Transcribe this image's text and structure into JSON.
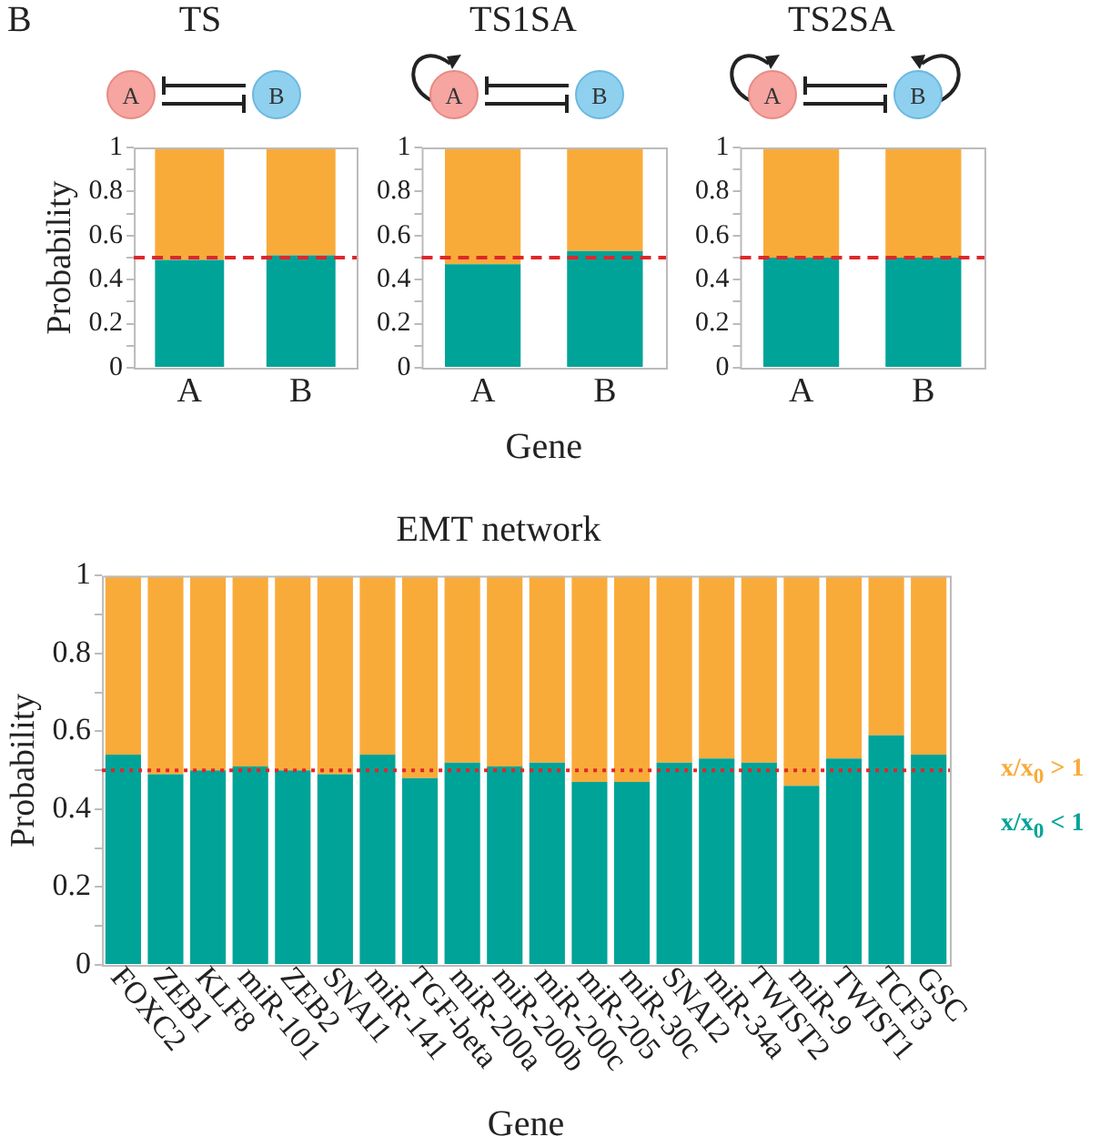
{
  "chart_data": [
    {
      "type": "bar",
      "title": "TS",
      "annotations": [
        "B"
      ],
      "ylabel": "Probability",
      "categories": [
        "A",
        "B"
      ],
      "stacked": true,
      "series": [
        {
          "color": "#00a398",
          "values": [
            0.49,
            0.51
          ]
        },
        {
          "color": "#f9ab3a",
          "values": [
            0.51,
            0.49
          ]
        }
      ],
      "ylim": [
        0,
        1
      ],
      "yticks": [
        0,
        {
          "value": 0.1,
          "label": null
        },
        0.2,
        {
          "value": 0.3,
          "label": null
        },
        0.4,
        {
          "value": 0.5,
          "label": null
        },
        0.6,
        {
          "value": 0.7,
          "label": null
        },
        0.8,
        {
          "value": 0.9,
          "label": null
        },
        1
      ],
      "ref_lines": [
        {
          "axis": "y",
          "value": 0.5,
          "color": "#e0262a",
          "line_style": "dashed"
        }
      ]
    },
    {
      "type": "bar",
      "title": "TS1SA",
      "xlabel": "Gene",
      "categories": [
        "A",
        "B"
      ],
      "stacked": true,
      "series": [
        {
          "color": "#00a398",
          "values": [
            0.47,
            0.53
          ]
        },
        {
          "color": "#f9ab3a",
          "values": [
            0.53,
            0.47
          ]
        }
      ],
      "ylim": [
        0,
        1
      ],
      "yticks": [
        0,
        {
          "value": 0.1,
          "label": null
        },
        0.2,
        {
          "value": 0.3,
          "label": null
        },
        0.4,
        {
          "value": 0.5,
          "label": null
        },
        0.6,
        {
          "value": 0.7,
          "label": null
        },
        0.8,
        {
          "value": 0.9,
          "label": null
        },
        1
      ],
      "ref_lines": [
        {
          "axis": "y",
          "value": 0.5,
          "color": "#e0262a",
          "line_style": "dashed"
        }
      ]
    },
    {
      "type": "bar",
      "title": "TS2SA",
      "categories": [
        "A",
        "B"
      ],
      "stacked": true,
      "series": [
        {
          "color": "#00a398",
          "values": [
            0.5,
            0.5
          ]
        },
        {
          "color": "#f9ab3a",
          "values": [
            0.5,
            0.5
          ]
        }
      ],
      "ylim": [
        0,
        1
      ],
      "yticks": [
        0,
        {
          "value": 0.1,
          "label": null
        },
        0.2,
        {
          "value": 0.3,
          "label": null
        },
        0.4,
        {
          "value": 0.5,
          "label": null
        },
        0.6,
        {
          "value": 0.7,
          "label": null
        },
        0.8,
        {
          "value": 0.9,
          "label": null
        },
        1
      ],
      "ref_lines": [
        {
          "axis": "y",
          "value": 0.5,
          "color": "#e0262a",
          "line_style": "dashed"
        }
      ]
    },
    {
      "type": "bar",
      "title": "EMT network",
      "xlabel": "Gene",
      "ylabel": "Probability",
      "legend": "right",
      "stacked": true,
      "categories": [
        "FOXC2",
        "ZEB1",
        "KLF8",
        "miR-101",
        "ZEB2",
        "SNAI1",
        "miR-141",
        "TGF-beta",
        "miR-200a",
        "miR-200b",
        "miR-200c",
        "miR-205",
        "miR-30c",
        "SNAI2",
        "miR-34a",
        "TWIST2",
        "miR-9",
        "TWIST1",
        "TCF3",
        "GSC"
      ],
      "series": [
        {
          "name": "x/x$_{0}$ < 1",
          "color": "#00a398",
          "values": [
            0.54,
            0.49,
            0.5,
            0.51,
            0.5,
            0.49,
            0.54,
            0.48,
            0.52,
            0.51,
            0.52,
            0.47,
            0.47,
            0.52,
            0.53,
            0.52,
            0.46,
            0.53,
            0.59,
            0.54
          ]
        },
        {
          "name": "x/x$_{0}$ > 1",
          "color": "#f9ab3a",
          "values": [
            0.46,
            0.51,
            0.5,
            0.49,
            0.5,
            0.51,
            0.46,
            0.52,
            0.48,
            0.49,
            0.48,
            0.53,
            0.53,
            0.48,
            0.47,
            0.48,
            0.54,
            0.47,
            0.41,
            0.46
          ]
        }
      ],
      "ylim": [
        0,
        1
      ],
      "yticks": [
        0,
        {
          "value": 0.1,
          "label": null
        },
        0.2,
        {
          "value": 0.3,
          "label": null
        },
        0.4,
        {
          "value": 0.5,
          "label": null
        },
        0.6,
        {
          "value": 0.7,
          "label": null
        },
        0.8,
        {
          "value": 0.9,
          "label": null
        },
        1
      ],
      "ref_lines": [
        {
          "axis": "y",
          "value": 0.5,
          "color": "#e0262a",
          "line_style": "dotted"
        }
      ]
    }
  ]
}
